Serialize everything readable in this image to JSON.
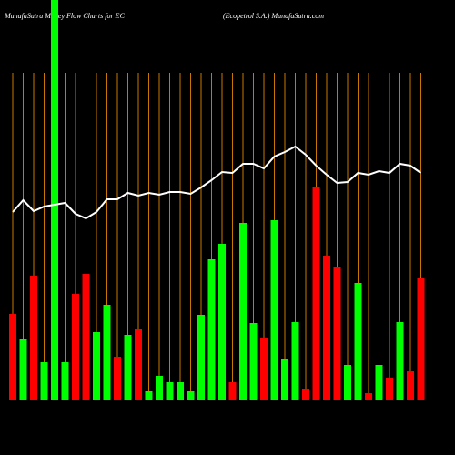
{
  "chart_data": {
    "type": "bar",
    "title": "MunafaSutra  Money Flow  Charts for EC",
    "subtitle": "(Ecopetrol S.A.) MunafaSutra.com",
    "categories": [
      null,
      null,
      null,
      null,
      null,
      null,
      null,
      null,
      null,
      null,
      null,
      null,
      null,
      null,
      null,
      null,
      null,
      null,
      null,
      null,
      null,
      null,
      null,
      null,
      null,
      null,
      null,
      null,
      null,
      null,
      null,
      null,
      null,
      null,
      null,
      null,
      null,
      null,
      null,
      null
    ],
    "series": [
      {
        "values": [
          95,
          67,
          137,
          42,
          440,
          42,
          117,
          139,
          75,
          105,
          48,
          72,
          79,
          10,
          27,
          20,
          20,
          10,
          94,
          155,
          172,
          20,
          195,
          85,
          69,
          198,
          45,
          86,
          13,
          234,
          159,
          147,
          39,
          129,
          8,
          39,
          25,
          86,
          32,
          135
        ],
        "colors": [
          "#f00",
          "#0f0",
          "#f00",
          "#0f0",
          "#0f0",
          "#0f0",
          "#f00",
          "#f00",
          "#0f0",
          "#0f0",
          "#f00",
          "#0f0",
          "#f00",
          "#0f0",
          "#0f0",
          "#0f0",
          "#0f0",
          "#0f0",
          "#0f0",
          "#0f0",
          "#0f0",
          "#f00",
          "#0f0",
          "#0f0",
          "#f00",
          "#0f0",
          "#0f0",
          "#0f0",
          "#f00",
          "#f00",
          "#f00",
          "#f00",
          "#0f0",
          "#0f0",
          "#f00",
          "#0f0",
          "#f00",
          "#0f0",
          "#f00",
          "#f00"
        ]
      },
      {
        "type": "line",
        "color": "#fff",
        "values": [
          207,
          220,
          208,
          213,
          215,
          217,
          205,
          200,
          207,
          221,
          221,
          228,
          225,
          228,
          226,
          229,
          229,
          227,
          234,
          242,
          251,
          250,
          260,
          260,
          255,
          268,
          273,
          279,
          270,
          258,
          248,
          239,
          240,
          250,
          248,
          252,
          250,
          260,
          258,
          250
        ]
      }
    ],
    "ylim": [
      0,
      440
    ],
    "grid": true,
    "grid_color": "#c87800"
  }
}
